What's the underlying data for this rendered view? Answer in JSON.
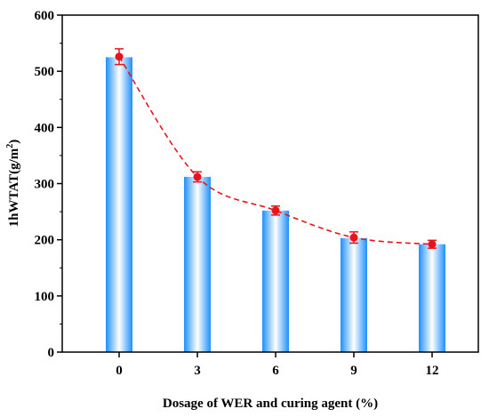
{
  "chart_data": {
    "type": "bar",
    "xlabel": "Dosage of WER and curing agent (%)",
    "ylabel_main": "1hWTAT(g/m",
    "ylabel_sup": "2",
    "ylabel_tail": ")",
    "categories": [
      "0",
      "3",
      "6",
      "9",
      "12"
    ],
    "values": [
      525,
      312,
      252,
      203,
      192
    ],
    "scatter_points": {
      "values": [
        526,
        312,
        252,
        204,
        192
      ],
      "errors": [
        14,
        9,
        8,
        10,
        7
      ]
    },
    "fit_curve": "dashed",
    "ylim": [
      0,
      600
    ],
    "yticks": [
      0,
      100,
      200,
      300,
      400,
      500,
      600
    ],
    "grid": false,
    "colors": {
      "bar_edge": "#1e90ff",
      "bar_center": "#ffffff",
      "point": "#e8141b",
      "curve": "#e8141b",
      "axis": "#000000"
    }
  }
}
